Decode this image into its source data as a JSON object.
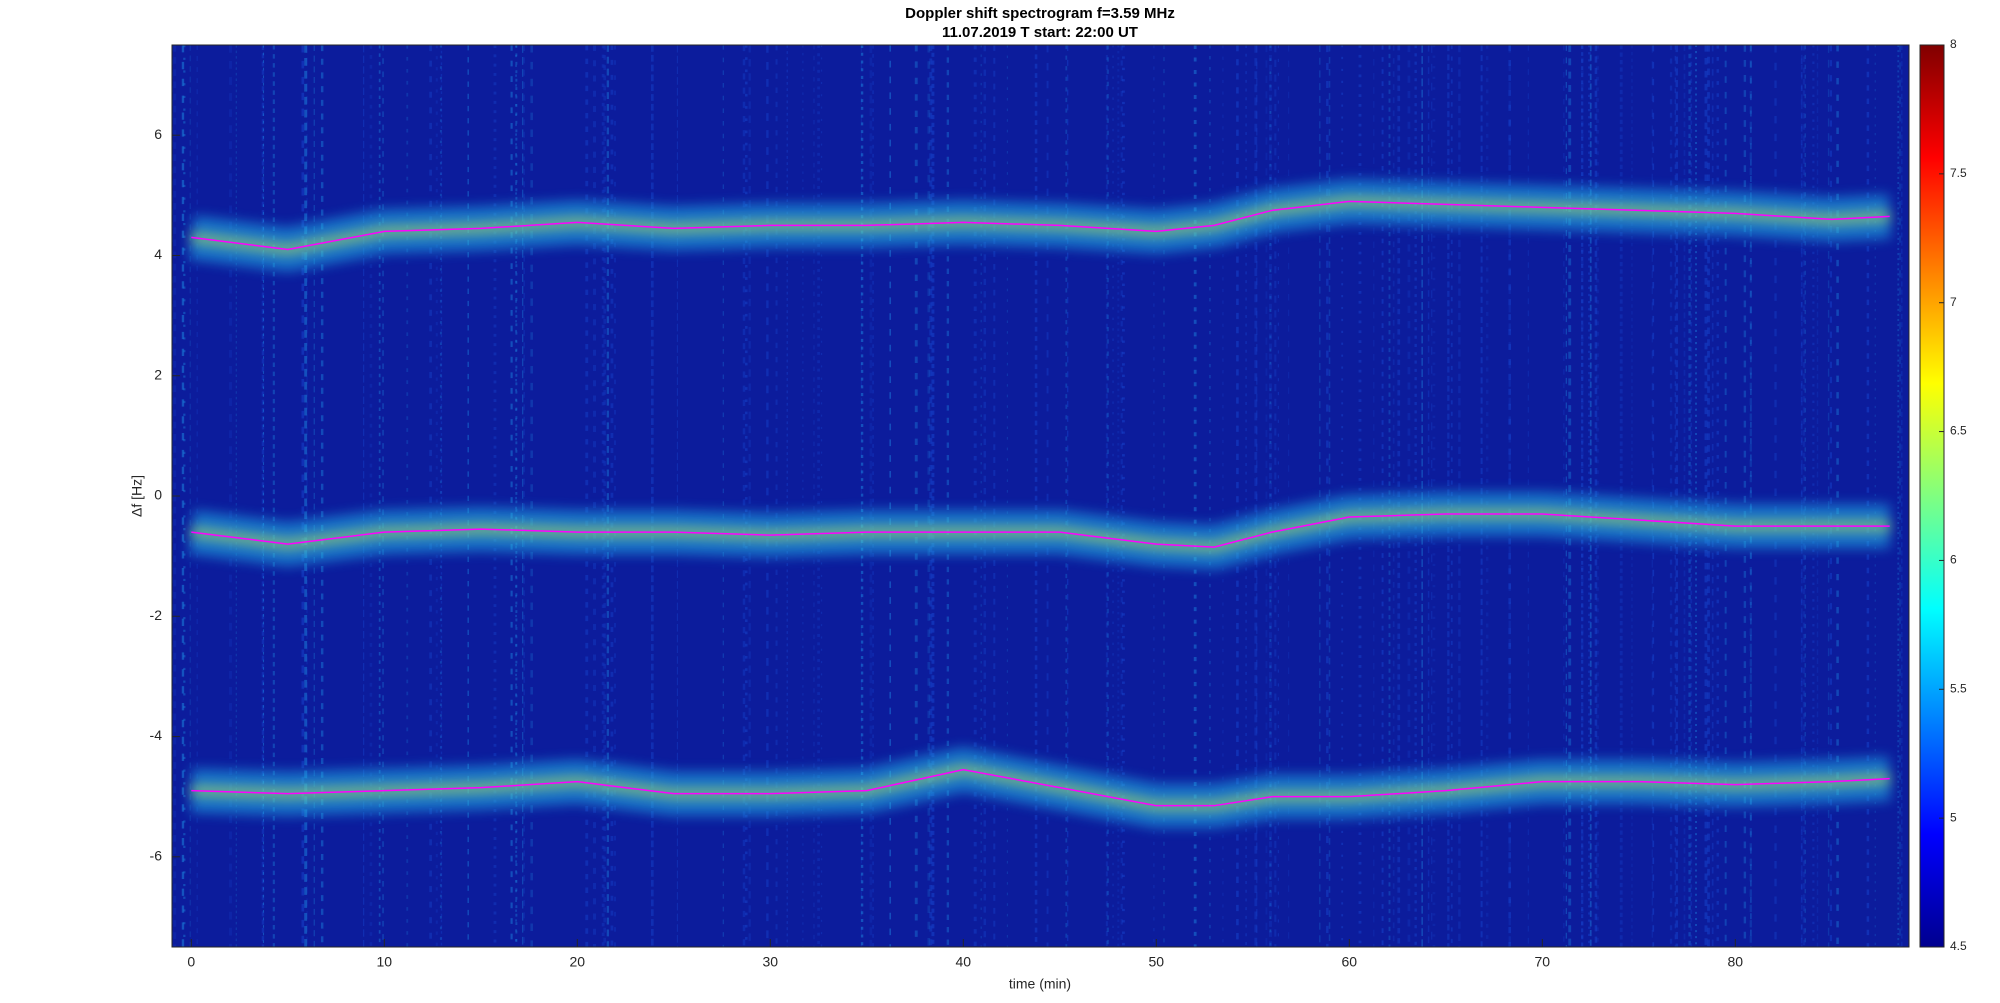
{
  "chart_data": {
    "type": "line",
    "title": "Doppler shift spectrogram f=3.59 MHz",
    "subtitle": "11.07.2019   T start: 22:00 UT",
    "x_label": "time (min)",
    "y_label": "Δf [Hz]",
    "x": [
      0,
      5,
      10,
      15,
      20,
      25,
      30,
      35,
      40,
      45,
      50,
      53,
      56,
      60,
      65,
      70,
      75,
      80,
      85,
      88
    ],
    "series": [
      {
        "color": "#ff00ff",
        "values": [
          4.3,
          4.1,
          4.4,
          4.45,
          4.55,
          4.45,
          4.5,
          4.5,
          4.55,
          4.5,
          4.4,
          4.5,
          4.75,
          4.9,
          4.85,
          4.8,
          4.75,
          4.7,
          4.6,
          4.65
        ]
      },
      {
        "color": "#ff00ff",
        "values": [
          -0.6,
          -0.8,
          -0.6,
          -0.55,
          -0.6,
          -0.6,
          -0.65,
          -0.6,
          -0.6,
          -0.6,
          -0.8,
          -0.85,
          -0.6,
          -0.35,
          -0.3,
          -0.3,
          -0.4,
          -0.5,
          -0.5,
          -0.5
        ]
      },
      {
        "color": "#ff00ff",
        "values": [
          -4.9,
          -4.95,
          -4.9,
          -4.85,
          -4.75,
          -4.95,
          -4.95,
          -4.9,
          -4.55,
          -4.85,
          -5.15,
          -5.15,
          -5.0,
          -5.0,
          -4.9,
          -4.75,
          -4.75,
          -4.8,
          -4.75,
          -4.7
        ]
      }
    ],
    "xlim": [
      -1,
      89
    ],
    "ylim": [
      -7.5,
      7.5
    ],
    "xticks": [
      0,
      10,
      20,
      30,
      40,
      50,
      60,
      70,
      80
    ],
    "yticks": [
      -6,
      -4,
      -2,
      0,
      2,
      4,
      6
    ],
    "background_color": "#0c1c9c",
    "colorbar": {
      "lim": [
        4.5,
        8
      ],
      "ticks": [
        4.5,
        5,
        5.5,
        6,
        6.5,
        7,
        7.5,
        8
      ],
      "colors": [
        "#00008f",
        "#0000ff",
        "#0080ff",
        "#00ffff",
        "#80ff80",
        "#ffff00",
        "#ff8000",
        "#ff0000",
        "#800000"
      ]
    }
  }
}
